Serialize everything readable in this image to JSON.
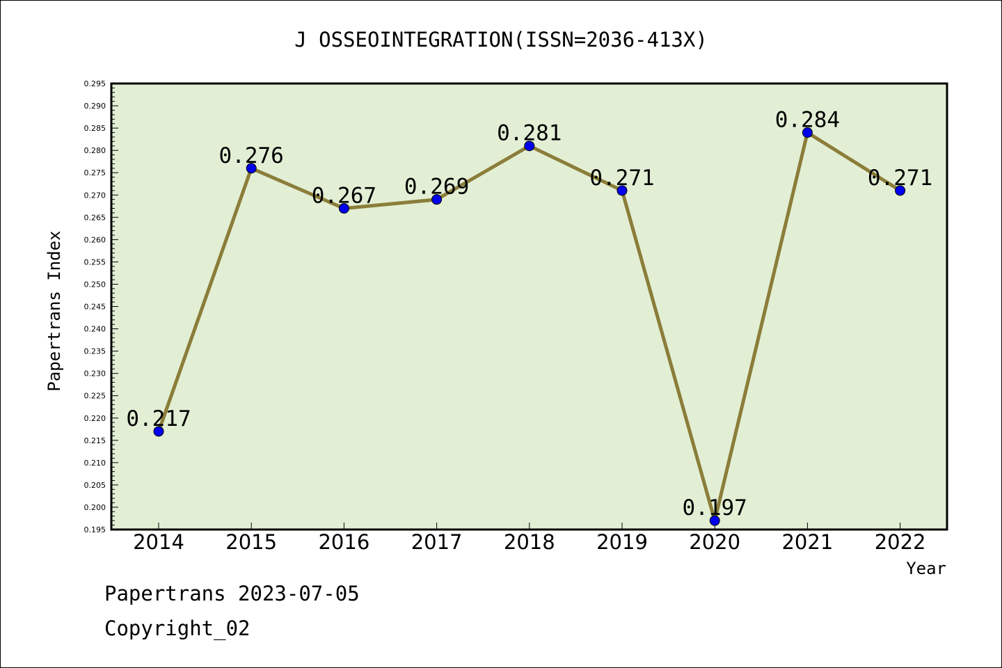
{
  "chart_data": {
    "type": "line",
    "title": "J OSSEOINTEGRATION(ISSN=2036-413X)",
    "xlabel": "Year",
    "ylabel": "Papertrans Index",
    "categories": [
      "2014",
      "2015",
      "2016",
      "2017",
      "2018",
      "2019",
      "2020",
      "2021",
      "2022"
    ],
    "values": [
      0.217,
      0.276,
      0.267,
      0.269,
      0.281,
      0.271,
      0.197,
      0.284,
      0.271
    ],
    "data_labels": [
      "0.217",
      "0.276",
      "0.267",
      "0.269",
      "0.281",
      "0.271",
      "0.197",
      "0.284",
      "0.271"
    ],
    "ylim": [
      0.195,
      0.295
    ],
    "y_ticks": [
      "0.195",
      "0.200",
      "0.205",
      "0.210",
      "0.215",
      "0.220",
      "0.225",
      "0.230",
      "0.235",
      "0.240",
      "0.245",
      "0.250",
      "0.255",
      "0.260",
      "0.265",
      "0.270",
      "0.275",
      "0.280",
      "0.285",
      "0.290",
      "0.295"
    ],
    "grid": false,
    "colors": {
      "plot_background": "#e2efd5",
      "line": "#8b7d3a",
      "marker": "#0000ee"
    }
  },
  "footer": {
    "source": "Papertrans 2023-07-05",
    "copyright": "Copyright_02"
  }
}
